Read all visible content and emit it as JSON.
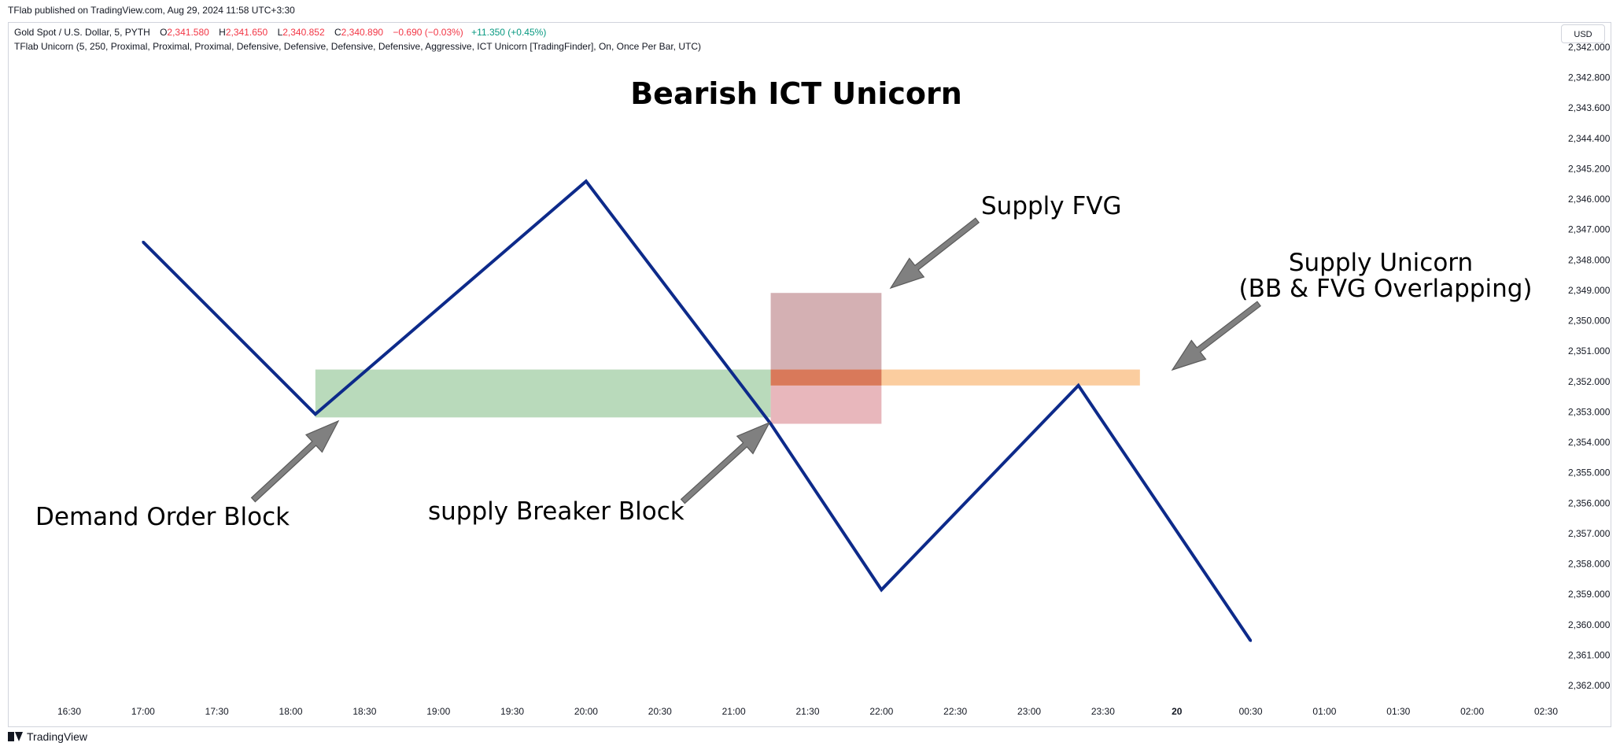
{
  "header": {
    "published": "TFlab published on TradingView.com, Aug 29, 2024 11:58 UTC+3:30"
  },
  "legend": {
    "symbol": "Gold Spot / U.S. Dollar, 5, PYTH",
    "o_label": "O",
    "o_value": "2,341.580",
    "h_label": "H",
    "h_value": "2,341.650",
    "l_label": "L",
    "l_value": "2,340.852",
    "c_label": "C",
    "c_value": "2,340.890",
    "change": "−0.690 (−0.03%)",
    "change2": "+11.350 (+0.45%)",
    "indicator": "TFlab Unicorn (5, 250, Proximal, Proximal, Proximal, Defensive, Defensive, Defensive, Defensive, Aggressive, ICT Unicorn [TradingFinder], On, Once Per Bar, UTC)"
  },
  "currency": "USD",
  "footer": {
    "brand": "TradingView"
  },
  "colors": {
    "line": "#0d2a8a",
    "demand_ob": "#b9dabb",
    "breaker": "#e8b7bc",
    "fvg": "#d4b0b3",
    "unicorn": "#fbcd9f",
    "overlap": "#d9795a",
    "arrow": "#808080"
  },
  "chart_data": {
    "type": "line",
    "title": "Bearish ICT Unicorn",
    "y_axis_ticks": [
      "2,342.000",
      "2,342.800",
      "2,343.600",
      "2,344.400",
      "2,345.200",
      "2,346.000",
      "2,347.000",
      "2,348.000",
      "2,349.000",
      "2,350.000",
      "2,351.000",
      "2,352.000",
      "2,353.000",
      "2,354.000",
      "2,355.000",
      "2,356.000",
      "2,357.000",
      "2,358.000",
      "2,359.000",
      "2,360.000",
      "2,361.000",
      "2,362.000"
    ],
    "x_axis_ticks": [
      "16:30",
      "17:00",
      "17:30",
      "18:00",
      "18:30",
      "19:00",
      "19:30",
      "20:00",
      "20:30",
      "21:00",
      "21:30",
      "22:00",
      "22:30",
      "23:00",
      "23:30",
      "20",
      "00:30",
      "01:00",
      "01:30",
      "02:00",
      "02:30"
    ],
    "x": [
      "17:00",
      "18:10",
      "20:00",
      "21:15",
      "22:00",
      "23:20",
      "00:30"
    ],
    "y": [
      2348.1,
      2353.5,
      2346.2,
      2353.8,
      2359.0,
      2352.6,
      2360.6
    ],
    "zones": [
      {
        "x0": "18:10",
        "x1": "21:15",
        "y0": 2352.1,
        "y1": 2353.6
      },
      {
        "x0": "21:15",
        "x1": "22:00",
        "y0": 2352.1,
        "y1": 2353.8
      },
      {
        "x0": "21:15",
        "x1": "22:00",
        "y0": 2349.7,
        "y1": 2352.1
      },
      {
        "x0": "21:15",
        "x1": "23:45",
        "y0": 2352.1,
        "y1": 2352.6
      }
    ],
    "annotations": [
      {
        "text": "Supply FVG"
      },
      {
        "text": "Supply Unicorn"
      },
      {
        "text": "(BB & FVG Overlapping)"
      },
      {
        "text": "Demand Order Block"
      },
      {
        "text": "supply Breaker Block"
      }
    ]
  }
}
